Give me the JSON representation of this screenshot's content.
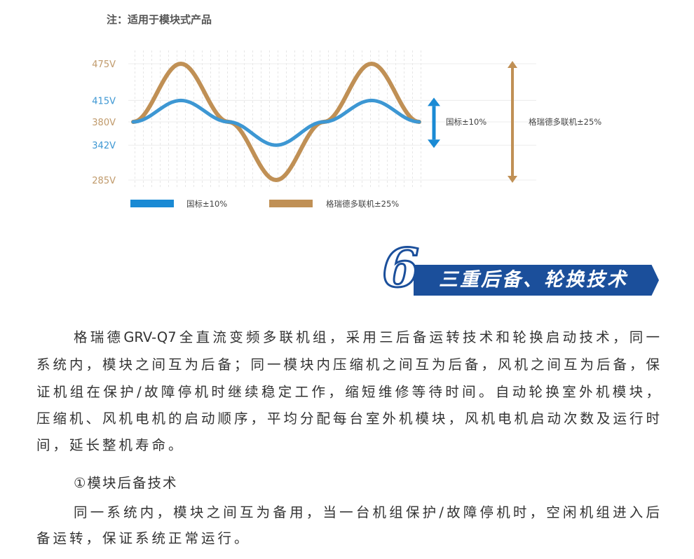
{
  "note": "注：适用于模块式产品",
  "chart_data": {
    "type": "line",
    "x": [
      0,
      90,
      180,
      270,
      360,
      450,
      540
    ],
    "series": [
      {
        "name": "国标±10%",
        "color": "#3d97d3",
        "values": [
          380,
          415,
          380,
          342,
          380,
          415,
          380
        ]
      },
      {
        "name": "格瑞德多联机±25%",
        "color": "#c09055",
        "values": [
          380,
          475,
          380,
          285,
          380,
          475,
          380
        ]
      }
    ],
    "yticks": [
      {
        "value": 475,
        "label": "475V",
        "color": "#c09a6b"
      },
      {
        "value": 415,
        "label": "415V",
        "color": "#3d97d3"
      },
      {
        "value": 380,
        "label": "380V",
        "color": "#c09a6b"
      },
      {
        "value": 342,
        "label": "342V",
        "color": "#3d97d3"
      },
      {
        "value": 285,
        "label": "285V",
        "color": "#c09a6b"
      }
    ],
    "ylim": [
      285,
      475
    ],
    "grid": true,
    "legend_placement": "bottom",
    "annotations": [
      {
        "label": "国标±10%",
        "range": [
          342,
          415
        ],
        "color": "#1a8ad4"
      },
      {
        "label": "格瑞德多联机±25%",
        "range": [
          285,
          475
        ],
        "color": "#c09055"
      }
    ]
  },
  "section": {
    "number": "6",
    "title": "三重后备、轮换技术",
    "color": "#1b4f9b"
  },
  "body": {
    "lines": [
      "格瑞德GRV-Q7全直流变频多联机组，采用三后备运转技术和轮换启动技术，同一",
      "系统内，模块之间互为后备；同一模块内压缩机之间互为后备，风机之间互为后备，保",
      "证机组在保护/故障停机时继续稳定工作，缩短维修等待时间。自动轮换室外机模块，",
      "压缩机、风机电机的启动顺序，平均分配每台室外机模块，风机电机启动次数及运行时",
      "间，延长整机寿命。",
      "①模块后备技术",
      "同一系统内，模块之间互为备用，当一台机组保护/故障停机时，空闲机组进入后",
      "备运转，保证系统正常运行。"
    ]
  }
}
